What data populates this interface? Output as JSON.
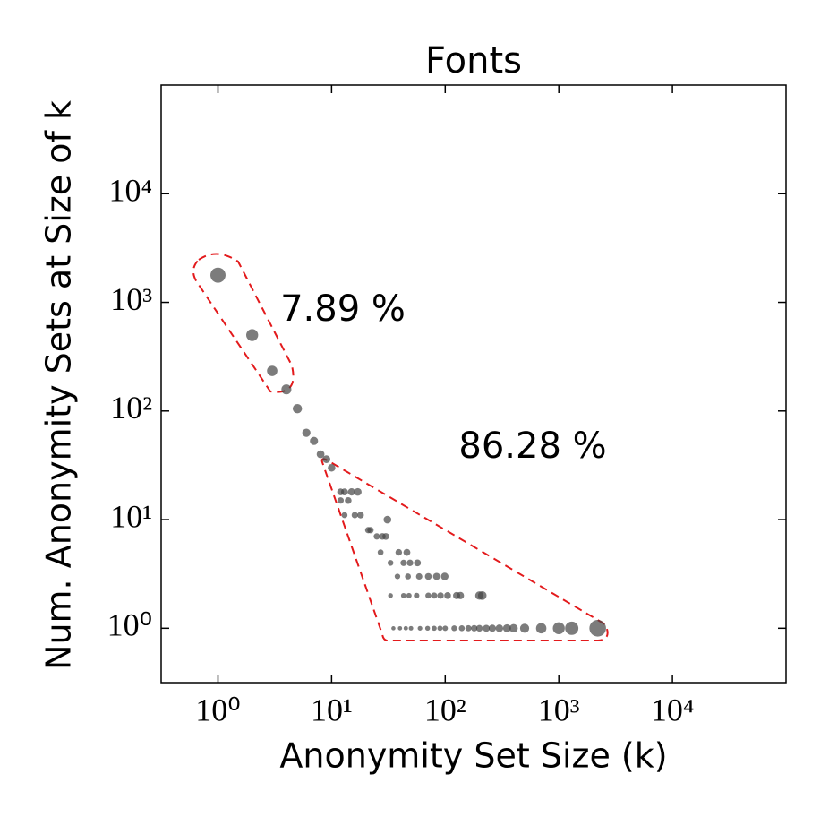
{
  "chart_data": {
    "type": "scatter",
    "title": "Fonts",
    "x_label": "Anonymity Set Size (k)",
    "y_label": "Num. Anonymity Sets at Size of k",
    "x_scale": "log",
    "y_scale": "log",
    "color": "#444444",
    "xlim": [
      0.316,
      100000
    ],
    "ylim": [
      0.316,
      100000
    ],
    "xticks": [
      {
        "value": 1,
        "label": "10⁰"
      },
      {
        "value": 10,
        "label": "10¹"
      },
      {
        "value": 100,
        "label": "10²"
      },
      {
        "value": 1000,
        "label": "10³"
      },
      {
        "value": 10000,
        "label": "10⁴"
      }
    ],
    "yticks": [
      {
        "value": 1,
        "label": "10⁰"
      },
      {
        "value": 10,
        "label": "10¹"
      },
      {
        "value": 100,
        "label": "10²"
      },
      {
        "value": 1000,
        "label": "10³"
      },
      {
        "value": 10000,
        "label": "10⁴"
      }
    ],
    "annotations": [
      "7.89 %",
      "86.28 %"
    ],
    "x": [
      1,
      2,
      3,
      4,
      5,
      6,
      7,
      8,
      9,
      10,
      12,
      13,
      15,
      17,
      12,
      14,
      13,
      16,
      18,
      21,
      22,
      25,
      28,
      30,
      31,
      27,
      39,
      46,
      33,
      43,
      49,
      57,
      38,
      47,
      59,
      71,
      84,
      99,
      33,
      43,
      48,
      56,
      71,
      80,
      91,
      105,
      126,
      136,
      200,
      212,
      35,
      40,
      45,
      50,
      60,
      70,
      80,
      90,
      100,
      120,
      140,
      160,
      180,
      200,
      230,
      260,
      300,
      350,
      400,
      500,
      700,
      1000,
      1300,
      2200
    ],
    "values": [
      1780,
      500,
      234,
      158,
      105,
      63,
      53,
      40,
      36,
      30,
      18,
      18,
      18,
      18,
      15,
      15,
      11,
      11,
      11,
      8,
      8,
      7,
      7,
      7,
      10,
      5,
      5,
      5,
      4,
      4,
      4,
      4,
      3,
      3,
      3,
      3,
      3,
      3,
      2,
      2,
      2,
      2,
      2,
      2,
      2,
      2,
      2,
      2,
      2,
      2,
      1,
      1,
      1,
      1,
      1,
      1,
      1,
      1,
      1,
      1,
      1,
      1,
      1,
      1,
      1,
      1,
      1,
      1,
      1,
      1,
      1,
      1,
      1,
      1
    ]
  }
}
